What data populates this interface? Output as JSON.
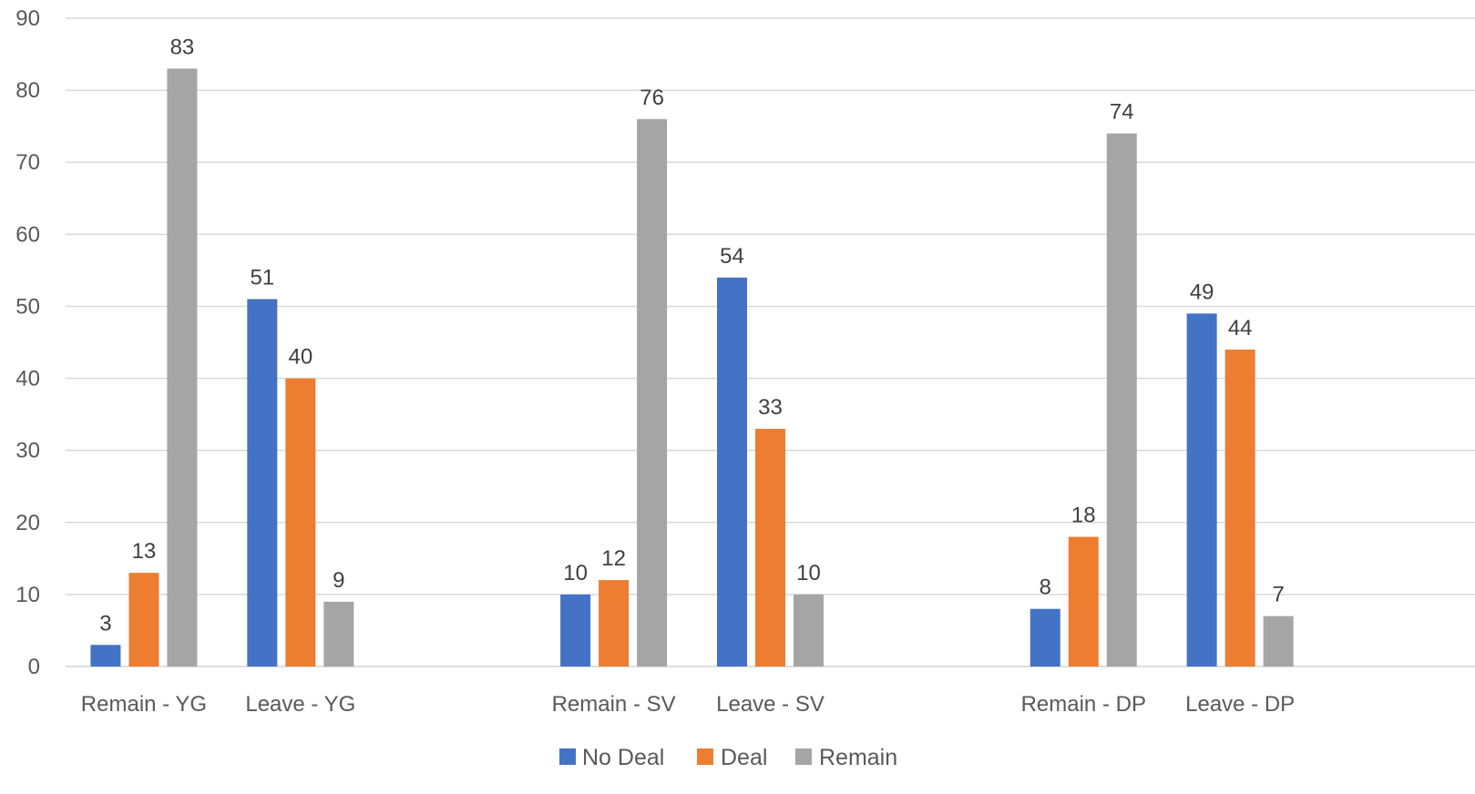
{
  "chart_data": {
    "type": "bar",
    "groups": [
      [
        "Remain - YG",
        "Leave - YG"
      ],
      [
        "Remain - SV",
        "Leave - SV"
      ],
      [
        "Remain - DP",
        "Leave - DP"
      ]
    ],
    "categories": [
      "Remain - YG",
      "Leave - YG",
      "Remain - SV",
      "Leave - SV",
      "Remain - DP",
      "Leave - DP"
    ],
    "series": [
      {
        "name": "No Deal",
        "color": "#4472c4",
        "values": [
          3,
          51,
          10,
          54,
          8,
          49
        ]
      },
      {
        "name": "Deal",
        "color": "#ed7d31",
        "values": [
          13,
          40,
          12,
          33,
          18,
          44
        ]
      },
      {
        "name": "Remain",
        "color": "#a5a5a5",
        "values": [
          83,
          9,
          76,
          10,
          74,
          7
        ]
      }
    ],
    "ylim": [
      0,
      90
    ],
    "yticks": [
      0,
      10,
      20,
      30,
      40,
      50,
      60,
      70,
      80,
      90
    ],
    "grid": true,
    "legend_position": "bottom",
    "data_labels": true
  }
}
